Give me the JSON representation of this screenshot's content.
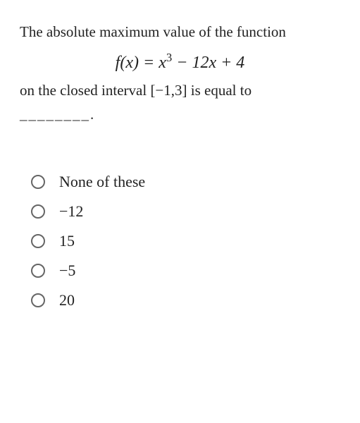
{
  "question": {
    "line1": "The absolute maximum value of the function",
    "equation_html": "f(x) = x<sup>3</sup> − 12x + 4",
    "equation_parts": {
      "fx": "f",
      "open": "(",
      "x1": "x",
      "close": ")",
      "eq": " = ",
      "x2": "x",
      "exp": "3",
      "minus1": " − 12",
      "x3": "x",
      "plus": " + 4"
    },
    "line2": "on the closed interval [−1,3] is equal to",
    "blank": "________."
  },
  "options": [
    {
      "label": "None of these"
    },
    {
      "label": "−12"
    },
    {
      "label": "15"
    },
    {
      "label": "−5"
    },
    {
      "label": "20"
    }
  ],
  "styling": {
    "text_color": "#222222",
    "background_color": "#ffffff",
    "radio_border": "#666666",
    "font_size_body": 21,
    "font_size_equation": 24,
    "font_size_option": 22
  }
}
